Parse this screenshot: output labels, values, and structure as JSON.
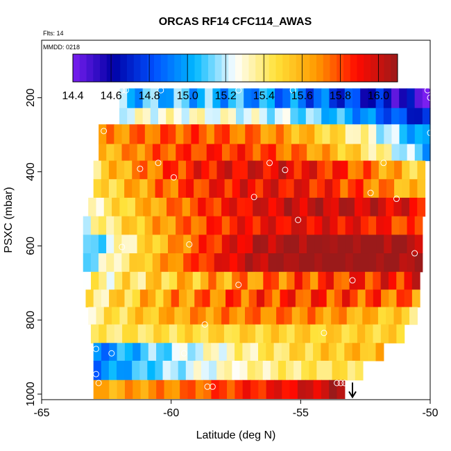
{
  "chart_data": {
    "type": "heatmap",
    "title": "ORCAS RF14 CFC114_AWAS",
    "top_labels": [
      "Flts: 14",
      "MMDD: 0218"
    ],
    "xlabel": "Latitude (deg N)",
    "ylabel": "PSXC (mbar)",
    "xlim": [
      -65,
      -50
    ],
    "ylim": [
      1015,
      45
    ],
    "x_ticks": [
      -65,
      -60,
      -55,
      -50
    ],
    "y_ticks": [
      200,
      400,
      600,
      800,
      1000
    ],
    "colorbar": {
      "min": 14.4,
      "max": 16.1,
      "ticks": [
        14.4,
        14.6,
        14.8,
        15.0,
        15.2,
        15.4,
        15.6,
        15.8,
        16.0
      ],
      "colors": [
        "#7a1ff0",
        "#0000a6",
        "#0050ff",
        "#00b8ff",
        "#ffffff",
        "#ffe23a",
        "#ff9a00",
        "#ff0a00",
        "#9b1a1a"
      ]
    },
    "layers": [
      {
        "p_top": 175,
        "p_bot": 228,
        "lat_min": -62.0,
        "lat_max": -50.0,
        "v_start": 15.05,
        "v_end": 14.45,
        "mid": 14.95,
        "noise": 0.15
      },
      {
        "p_top": 228,
        "p_bot": 272,
        "lat_min": -62.0,
        "lat_max": -50.0,
        "v_start": 15.25,
        "v_end": 14.65,
        "mid": 15.2,
        "noise": 0.1
      },
      {
        "p_top": 272,
        "p_bot": 325,
        "lat_min": -62.8,
        "lat_max": -50.0,
        "v_start": 15.65,
        "v_end": 14.9,
        "mid": 15.7,
        "noise": 0.1
      },
      {
        "p_top": 325,
        "p_bot": 370,
        "lat_min": -62.8,
        "lat_max": -50.0,
        "v_start": 15.55,
        "v_end": 15.0,
        "mid": 15.8,
        "noise": 0.1
      },
      {
        "p_top": 370,
        "p_bot": 420,
        "lat_min": -63.0,
        "lat_max": -50.2,
        "v_start": 15.45,
        "v_end": 15.45,
        "mid": 15.95,
        "noise": 0.12
      },
      {
        "p_top": 420,
        "p_bot": 470,
        "lat_min": -63.0,
        "lat_max": -50.2,
        "v_start": 15.4,
        "v_end": 15.5,
        "mid": 15.92,
        "noise": 0.12
      },
      {
        "p_top": 470,
        "p_bot": 520,
        "lat_min": -63.2,
        "lat_max": -50.2,
        "v_start": 15.3,
        "v_end": 15.9,
        "mid": 15.95,
        "noise": 0.1
      },
      {
        "p_top": 520,
        "p_bot": 570,
        "lat_min": -63.4,
        "lat_max": -50.3,
        "v_start": 15.25,
        "v_end": 15.75,
        "mid": 15.9,
        "noise": 0.1
      },
      {
        "p_top": 570,
        "p_bot": 620,
        "lat_min": -63.4,
        "lat_max": -50.3,
        "v_start": 15.0,
        "v_end": 16.05,
        "mid": 16.0,
        "noise": 0.1
      },
      {
        "p_top": 620,
        "p_bot": 670,
        "lat_min": -63.4,
        "lat_max": -50.3,
        "v_start": 15.1,
        "v_end": 16.05,
        "mid": 16.02,
        "noise": 0.08
      },
      {
        "p_top": 670,
        "p_bot": 718,
        "lat_min": -63.4,
        "lat_max": -50.4,
        "v_start": 15.3,
        "v_end": 15.9,
        "mid": 15.7,
        "noise": 0.15
      },
      {
        "p_top": 718,
        "p_bot": 765,
        "lat_min": -63.3,
        "lat_max": -50.4,
        "v_start": 15.35,
        "v_end": 15.7,
        "mid": 15.8,
        "noise": 0.15
      },
      {
        "p_top": 765,
        "p_bot": 812,
        "lat_min": -63.2,
        "lat_max": -50.5,
        "v_start": 15.35,
        "v_end": 15.45,
        "mid": 15.72,
        "noise": 0.1
      },
      {
        "p_top": 812,
        "p_bot": 862,
        "lat_min": -63.1,
        "lat_max": -51.0,
        "v_start": 15.4,
        "v_end": 15.5,
        "mid": 15.5,
        "noise": 0.08
      },
      {
        "p_top": 862,
        "p_bot": 910,
        "lat_min": -63.0,
        "lat_max": -51.8,
        "v_start": 14.9,
        "v_end": 15.6,
        "mid": 15.35,
        "noise": 0.1
      },
      {
        "p_top": 910,
        "p_bot": 962,
        "lat_min": -63.0,
        "lat_max": -52.6,
        "v_start": 14.9,
        "v_end": 15.45,
        "mid": 15.3,
        "noise": 0.08
      },
      {
        "p_top": 962,
        "p_bot": 1012,
        "lat_min": -63.0,
        "lat_max": -53.3,
        "v_start": 15.6,
        "v_end": 16.05,
        "mid": 15.8,
        "noise": 0.08
      }
    ],
    "points": [
      {
        "lat": -61.9,
        "p": 180
      },
      {
        "lat": -61.75,
        "p": 180
      },
      {
        "lat": -60.4,
        "p": 180
      },
      {
        "lat": -57.4,
        "p": 180
      },
      {
        "lat": -55.3,
        "p": 180
      },
      {
        "lat": -50.1,
        "p": 180
      },
      {
        "lat": -50.0,
        "p": 200
      },
      {
        "lat": -62.6,
        "p": 290
      },
      {
        "lat": -50.0,
        "p": 295
      },
      {
        "lat": -61.2,
        "p": 392
      },
      {
        "lat": -60.5,
        "p": 376
      },
      {
        "lat": -59.9,
        "p": 415
      },
      {
        "lat": -56.2,
        "p": 376
      },
      {
        "lat": -55.6,
        "p": 395
      },
      {
        "lat": -51.8,
        "p": 376
      },
      {
        "lat": -56.8,
        "p": 468
      },
      {
        "lat": -52.3,
        "p": 457
      },
      {
        "lat": -51.3,
        "p": 473
      },
      {
        "lat": -50.0,
        "p": 463
      },
      {
        "lat": -55.1,
        "p": 530
      },
      {
        "lat": -61.9,
        "p": 603
      },
      {
        "lat": -59.3,
        "p": 596
      },
      {
        "lat": -50.6,
        "p": 620
      },
      {
        "lat": -57.4,
        "p": 705
      },
      {
        "lat": -53.0,
        "p": 693
      },
      {
        "lat": -50.0,
        "p": 773
      },
      {
        "lat": -58.7,
        "p": 812
      },
      {
        "lat": -54.1,
        "p": 835
      },
      {
        "lat": -62.9,
        "p": 878
      },
      {
        "lat": -62.3,
        "p": 890
      },
      {
        "lat": -59.5,
        "p": 890
      },
      {
        "lat": -62.9,
        "p": 946
      },
      {
        "lat": -62.8,
        "p": 970
      },
      {
        "lat": -58.6,
        "p": 980
      },
      {
        "lat": -58.4,
        "p": 980
      },
      {
        "lat": -53.6,
        "p": 970
      },
      {
        "lat": -53.45,
        "p": 970
      },
      {
        "lat": -53.3,
        "p": 970
      }
    ],
    "marker": {
      "lat": -53.0,
      "p": 1010,
      "glyph": "↓"
    }
  }
}
